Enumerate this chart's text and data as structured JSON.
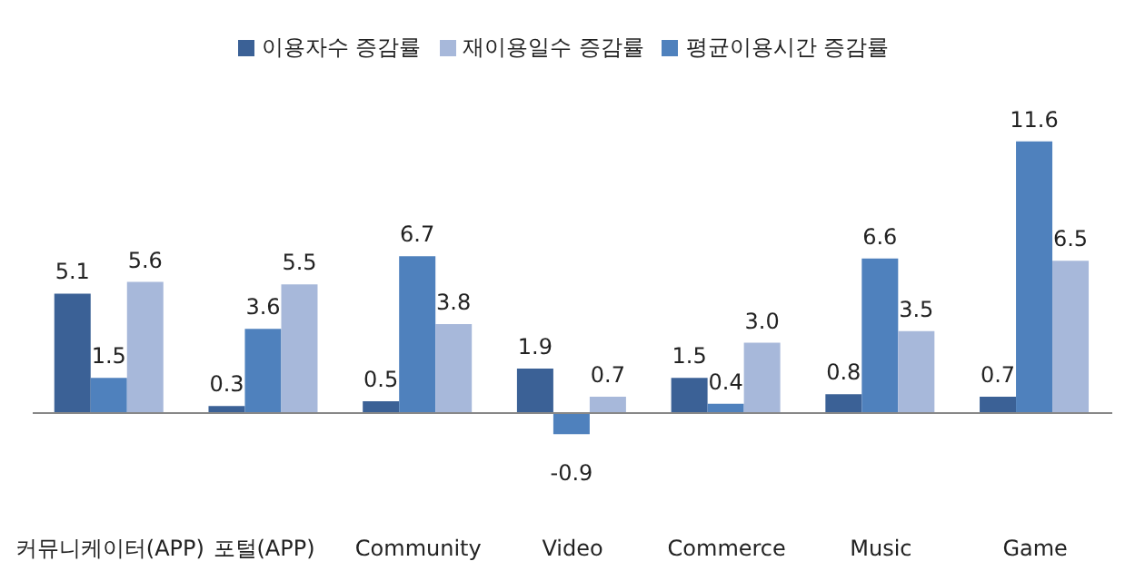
{
  "chart_data": {
    "type": "bar",
    "categories": [
      "커뮤니케이터(APP)",
      "포털(APP)",
      "Community",
      "Video",
      "Commerce",
      "Music",
      "Game"
    ],
    "series": [
      {
        "name": "이용자수 증감률",
        "color": "#3b6196",
        "values": [
          5.1,
          0.3,
          0.5,
          1.9,
          1.5,
          0.8,
          0.7
        ],
        "value_labels": [
          "5.1",
          "0.3",
          "0.5",
          "1.9",
          "1.5",
          "0.8",
          "0.7"
        ]
      },
      {
        "name": "평균이용시간 증감률",
        "color": "#4f81bd",
        "values": [
          1.5,
          3.6,
          6.7,
          -0.9,
          0.4,
          6.6,
          11.6
        ],
        "value_labels": [
          "1.5",
          "3.6",
          "6.7",
          "-0.9",
          "0.4",
          "6.6",
          "11.6"
        ]
      },
      {
        "name": "재이용일수 증감률",
        "color": "#a7b8da",
        "values": [
          5.6,
          5.5,
          3.8,
          0.7,
          3.0,
          3.5,
          6.5
        ],
        "value_labels": [
          "5.6",
          "5.5",
          "3.8",
          "0.7",
          "3.0",
          "3.5",
          "6.5"
        ]
      }
    ],
    "legend": "top",
    "grid": false
  }
}
